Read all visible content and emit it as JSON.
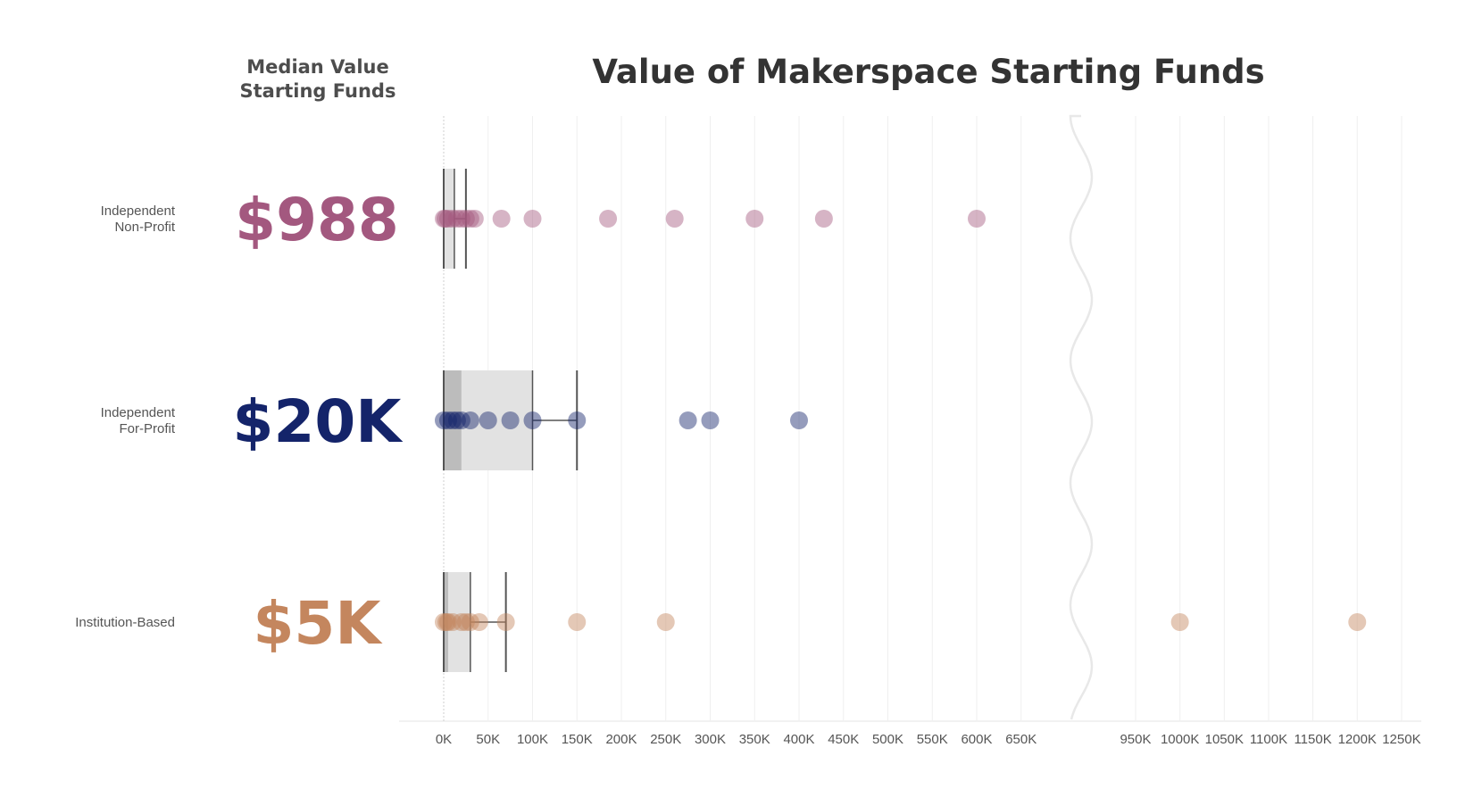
{
  "chart_data": {
    "type": "scatter",
    "title": "Value of Makerspace Starting Funds",
    "median_header": [
      "Median Value",
      "Starting Funds"
    ],
    "x_ticks_left": [
      "0K",
      "50K",
      "100K",
      "150K",
      "200K",
      "250K",
      "300K",
      "350K",
      "400K",
      "450K",
      "500K",
      "550K",
      "600K",
      "650K"
    ],
    "x_ticks_right": [
      "950K",
      "1000K",
      "1050K",
      "1100K",
      "1150K",
      "1200K",
      "1250K"
    ],
    "axis_break": {
      "from": 650000,
      "to": 950000
    },
    "categories": [
      {
        "label_lines": [
          "Independent",
          "Non-Profit"
        ],
        "median_label": "$988",
        "color": "#a3587f",
        "box": {
          "q1": 0,
          "median": 988,
          "q3": 12000,
          "whisker_high": 25000
        },
        "points": [
          0,
          2000,
          5000,
          10000,
          15000,
          20000,
          25000,
          30000,
          35000,
          65000,
          100000,
          185000,
          260000,
          350000,
          428000,
          600000
        ]
      },
      {
        "label_lines": [
          "Independent",
          "For-Profit"
        ],
        "median_label": "$20K",
        "color": "#14246a",
        "box": {
          "q1": 0,
          "median": 20000,
          "q3": 100000,
          "whisker_high": 150000
        },
        "points": [
          0,
          5000,
          10000,
          15000,
          20000,
          30000,
          50000,
          75000,
          100000,
          150000,
          275000,
          300000,
          400000
        ]
      },
      {
        "label_lines": [
          "Institution-Based"
        ],
        "median_label": "$5K",
        "color": "#c4865e",
        "box": {
          "q1": 0,
          "median": 5000,
          "q3": 30000,
          "whisker_high": 70000
        },
        "points": [
          0,
          3000,
          5000,
          10000,
          20000,
          25000,
          30000,
          40000,
          70000,
          150000,
          250000,
          1000000,
          1200000
        ]
      }
    ]
  }
}
